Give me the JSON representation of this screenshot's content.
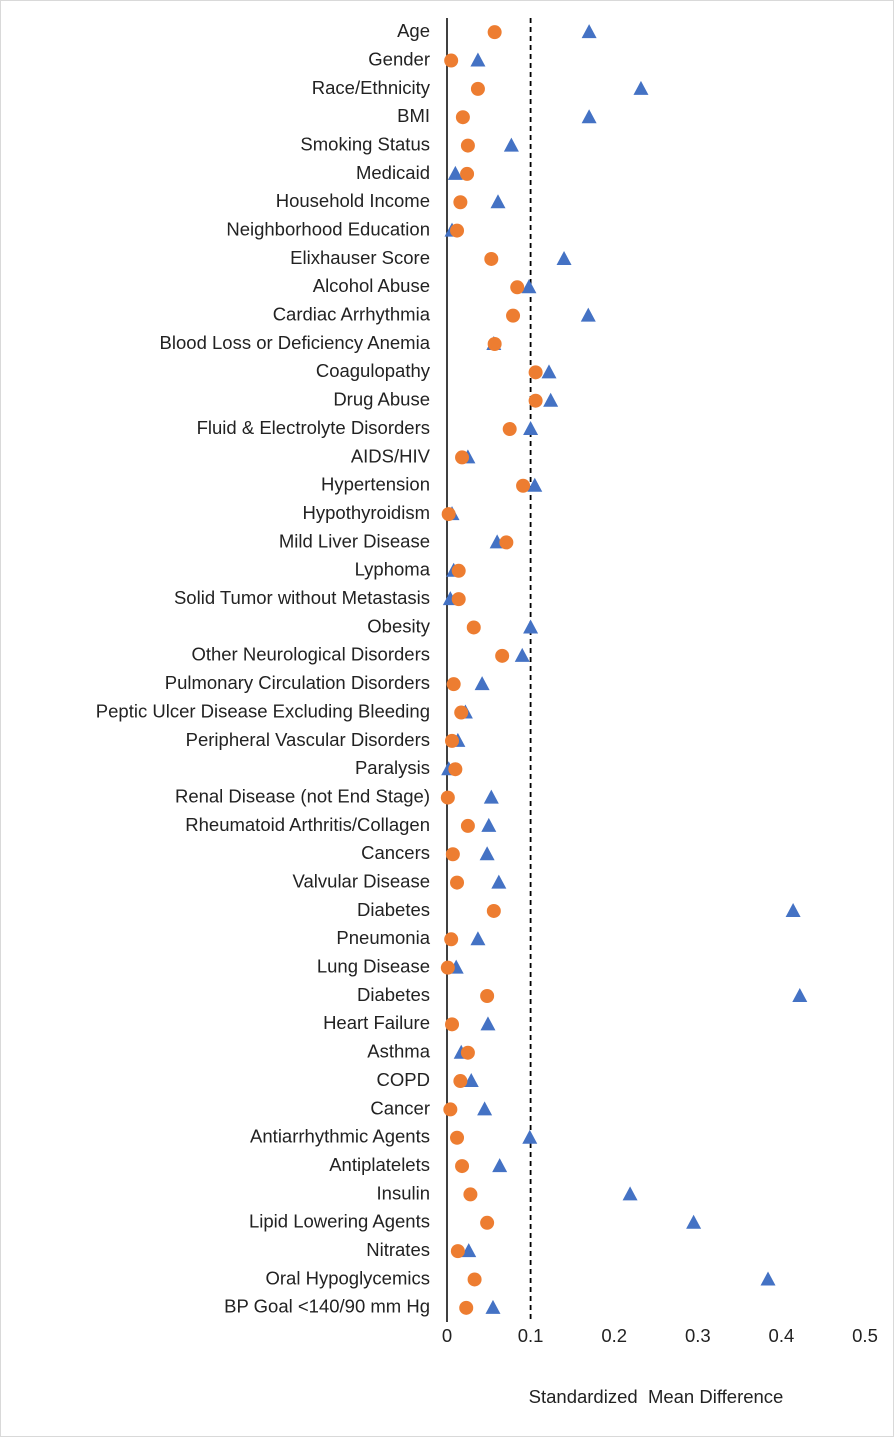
{
  "chart_data": {
    "type": "dot",
    "categories": [
      "Age",
      "Gender",
      "Race/Ethnicity",
      "BMI",
      "Smoking Status",
      "Medicaid",
      "Household Income",
      "Neighborhood Education",
      "Elixhauser Score",
      "Alcohol Abuse",
      "Cardiac Arrhythmia",
      "Blood Loss or Deficiency Anemia",
      "Coagulopathy",
      "Drug Abuse",
      "Fluid & Electrolyte Disorders",
      "AIDS/HIV",
      "Hypertension",
      "Hypothyroidism",
      "Mild Liver Disease",
      "Lyphoma",
      "Solid Tumor without Metastasis",
      "Obesity",
      "Other Neurological Disorders",
      "Pulmonary Circulation Disorders",
      "Peptic Ulcer Disease Excluding Bleeding",
      "Peripheral Vascular Disorders",
      "Paralysis",
      "Renal Disease (not End Stage)",
      "Rheumatoid Arthritis/Collagen",
      "Cancers",
      "Valvular Disease",
      "Diabetes",
      "Pneumonia",
      "Lung Disease",
      "Diabetes",
      "Heart Failure",
      "Asthma",
      "COPD",
      "Cancer",
      "Antiarrhythmic Agents",
      "Antiplatelets",
      "Insulin",
      "Lipid Lowering Agents",
      "Nitrates",
      "Oral Hypoglycemics",
      "BP Goal <140/90 mm Hg"
    ],
    "series": [
      {
        "color": "#4472c4",
        "marker": "triangle",
        "values": [
          0.17,
          0.037,
          0.232,
          0.17,
          0.077,
          0.01,
          0.061,
          0.006,
          0.14,
          0.098,
          0.169,
          0.056,
          0.122,
          0.124,
          0.1,
          0.025,
          0.105,
          0.006,
          0.06,
          0.008,
          0.004,
          0.1,
          0.09,
          0.042,
          0.022,
          0.013,
          0.002,
          0.053,
          0.05,
          0.048,
          0.062,
          0.414,
          0.037,
          0.011,
          0.422,
          0.049,
          0.017,
          0.029,
          0.045,
          0.099,
          0.063,
          0.219,
          0.295,
          0.026,
          0.384,
          0.055
        ]
      },
      {
        "color": "#ed7d31",
        "marker": "circle",
        "values": [
          0.057,
          0.005,
          0.037,
          0.019,
          0.025,
          0.024,
          0.016,
          0.012,
          0.053,
          0.084,
          0.079,
          0.057,
          0.106,
          0.106,
          0.075,
          0.018,
          0.091,
          0.002,
          0.071,
          0.014,
          0.014,
          0.032,
          0.066,
          0.008,
          0.017,
          0.006,
          0.01,
          0.001,
          0.025,
          0.007,
          0.012,
          0.056,
          0.005,
          0.001,
          0.048,
          0.006,
          0.025,
          0.016,
          0.004,
          0.012,
          0.018,
          0.028,
          0.048,
          0.013,
          0.033,
          0.023
        ]
      }
    ],
    "x_label": "Standardized  Mean Difference",
    "xlim": [
      0,
      0.5
    ],
    "xticks": [
      0,
      0.1,
      0.2,
      0.3,
      0.4,
      0.5
    ],
    "vlines": [
      0.1
    ]
  }
}
